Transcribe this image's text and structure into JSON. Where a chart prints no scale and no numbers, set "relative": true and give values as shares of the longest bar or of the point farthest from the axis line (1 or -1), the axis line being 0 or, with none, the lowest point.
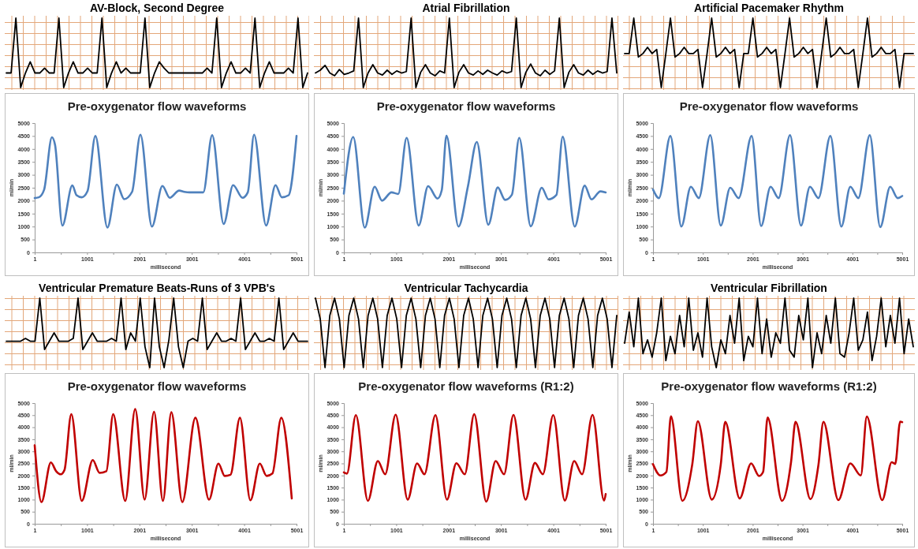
{
  "chart_data": [
    {
      "type": "line",
      "title": "AV-Block, Second Degree",
      "relative": true,
      "categories": [
        null,
        null,
        null,
        null,
        null,
        null,
        null,
        null,
        null,
        null,
        null,
        null,
        null,
        null,
        null,
        null,
        null,
        null,
        null,
        null,
        null,
        null,
        null,
        null,
        null,
        null,
        null,
        null,
        null,
        null,
        null,
        null,
        null,
        null,
        null,
        null,
        null,
        null,
        null,
        null,
        null,
        null,
        null,
        null,
        null,
        null,
        null,
        null,
        null,
        null,
        null,
        null,
        null,
        null,
        null,
        null,
        null,
        null,
        null,
        null,
        null,
        null,
        null,
        null
      ],
      "series": [
        {
          "color": "#000000",
          "values": [
            0.21,
            0.21,
            1,
            0,
            0.21,
            0.37,
            0.21,
            0.21,
            0.28,
            0.21,
            0.21,
            1,
            0,
            0.21,
            0.37,
            0.21,
            0.21,
            0.28,
            0.21,
            0.21,
            1,
            0,
            0.21,
            0.37,
            0.21,
            0.28,
            0.21,
            0.21,
            0.21,
            1,
            0,
            0.21,
            0.37,
            0.28,
            0.21,
            0.21,
            0.21,
            0.21,
            0.21,
            0.21,
            0.21,
            0.21,
            0.28,
            0.21,
            1,
            0,
            0.21,
            0.37,
            0.21,
            0.21,
            0.28,
            0.21,
            1,
            0,
            0.21,
            0.37,
            0.21,
            0.21,
            0.21,
            0.28,
            0.21,
            1,
            0,
            0.21
          ]
        }
      ]
    },
    {
      "type": "line",
      "title": "Atrial Fibrillation",
      "relative": true,
      "categories": [
        null,
        null,
        null,
        null,
        null,
        null,
        null,
        null,
        null,
        null,
        null,
        null,
        null,
        null,
        null,
        null,
        null,
        null,
        null,
        null,
        null,
        null,
        null,
        null,
        null,
        null,
        null,
        null,
        null,
        null,
        null,
        null,
        null,
        null,
        null,
        null,
        null,
        null,
        null,
        null,
        null,
        null,
        null,
        null,
        null,
        null,
        null,
        null,
        null,
        null,
        null,
        null,
        null,
        null,
        null,
        null,
        null,
        null,
        null,
        null,
        null,
        null,
        null,
        null
      ],
      "series": [
        {
          "color": "#000000",
          "values": [
            0.21,
            0.25,
            0.32,
            0.21,
            0.17,
            0.26,
            0.19,
            0.21,
            0.24,
            1,
            0,
            0.21,
            0.33,
            0.21,
            0.18,
            0.25,
            0.19,
            0.24,
            0.21,
            0.23,
            1,
            0,
            0.22,
            0.33,
            0.21,
            0.17,
            0.24,
            0.21,
            1,
            0,
            0.22,
            0.33,
            0.21,
            0.18,
            0.24,
            0.19,
            0.25,
            0.21,
            0.18,
            0.24,
            0.21,
            0.23,
            1,
            0,
            0.22,
            0.34,
            0.21,
            0.17,
            0.25,
            0.19,
            0.24,
            1,
            0,
            0.22,
            0.33,
            0.21,
            0.18,
            0.25,
            0.19,
            0.24,
            0.21,
            0.23,
            1,
            0.21
          ]
        }
      ]
    },
    {
      "type": "line",
      "title": "Artificial Pacemaker Rhythm",
      "relative": true,
      "categories": [
        null,
        null,
        null,
        null,
        null,
        null,
        null,
        null,
        null,
        null,
        null,
        null,
        null,
        null,
        null,
        null,
        null,
        null,
        null,
        null,
        null,
        null,
        null,
        null,
        null,
        null,
        null,
        null,
        null,
        null,
        null,
        null,
        null,
        null,
        null,
        null,
        null,
        null,
        null,
        null,
        null,
        null,
        null,
        null,
        null,
        null,
        null,
        null,
        null,
        null,
        null,
        null,
        null,
        null,
        null,
        null,
        null,
        null,
        null,
        null,
        null,
        null,
        null,
        null
      ],
      "series": [
        {
          "color": "#000000",
          "values": [
            0.49,
            0.49,
            1,
            0.44,
            0.49,
            0.58,
            0.49,
            0.55,
            0,
            0.49,
            1,
            0.44,
            0.49,
            0.58,
            0.49,
            0.49,
            0.55,
            0,
            0.49,
            1,
            0.44,
            0.49,
            0.58,
            0.49,
            0.55,
            0,
            0.49,
            0.49,
            1,
            0.44,
            0.49,
            0.58,
            0.49,
            0.55,
            0,
            0.49,
            1,
            0.44,
            0.49,
            0.58,
            0.49,
            0.55,
            0,
            0.49,
            1,
            0.44,
            0.49,
            0.58,
            0.49,
            0.49,
            0.55,
            0,
            0.49,
            1,
            0.44,
            0.49,
            0.58,
            0.49,
            0.49,
            0.55,
            0,
            0.49,
            0.49,
            0.49
          ]
        }
      ]
    },
    {
      "type": "line",
      "title": "Pre-oxygenator flow waveforms",
      "xlabel": "millisecond",
      "ylabel": "ml/min",
      "xlim": [
        1,
        5001
      ],
      "xticks": [
        1,
        {
          "value": 501,
          "label": null
        },
        1001,
        {
          "value": 1501,
          "label": null
        },
        2001,
        {
          "value": 2501,
          "label": null
        },
        3001,
        {
          "value": 3501,
          "label": null
        },
        4001,
        {
          "value": 4501,
          "label": null
        },
        5001
      ],
      "ylim": [
        0,
        5000
      ],
      "yticks": [
        0,
        500,
        1000,
        1500,
        2000,
        2500,
        3000,
        3500,
        4000,
        4500,
        5000
      ],
      "series": [
        {
          "color": "#4f81bd",
          "x": [
            1,
            80,
            180,
            330,
            390,
            530,
            720,
            800,
            900,
            1010,
            1160,
            1390,
            1570,
            1710,
            1860,
            2020,
            2240,
            2440,
            2580,
            2760,
            2860,
            2960,
            3220,
            3390,
            3610,
            3790,
            3970,
            4070,
            4190,
            4420,
            4600,
            4720,
            4850,
            5001
          ],
          "values": [
            2100,
            2130,
            2420,
            4450,
            4150,
            1040,
            2590,
            2210,
            2130,
            2370,
            4500,
            960,
            2620,
            2060,
            2340,
            4550,
            1000,
            2570,
            2110,
            2390,
            2340,
            2320,
            2320,
            4530,
            1100,
            2600,
            2110,
            2320,
            4550,
            1040,
            2600,
            2130,
            2210,
            4500
          ]
        }
      ]
    },
    {
      "type": "line",
      "title": "Pre-oxygenator flow waveforms",
      "xlabel": "millisecond",
      "ylabel": "ml/min",
      "xlim": [
        1,
        5001
      ],
      "xticks": [
        1,
        {
          "value": 501,
          "label": null
        },
        1001,
        {
          "value": 1501,
          "label": null
        },
        2001,
        {
          "value": 2501,
          "label": null
        },
        3001,
        {
          "value": 3501,
          "label": null
        },
        4001,
        {
          "value": 4501,
          "label": null
        },
        5001
      ],
      "ylim": [
        0,
        5000
      ],
      "yticks": [
        0,
        500,
        1000,
        1500,
        2000,
        2500,
        3000,
        3500,
        4000,
        4500,
        5000
      ],
      "series": [
        {
          "color": "#4f81bd",
          "x": [
            1,
            180,
            400,
            590,
            730,
            910,
            1040,
            1200,
            1430,
            1610,
            1790,
            1870,
            1960,
            2190,
            2370,
            2540,
            2760,
            2940,
            3080,
            3210,
            3350,
            3570,
            3780,
            3910,
            4060,
            4180,
            4410,
            4600,
            4730,
            4900,
            5001
          ],
          "values": [
            2270,
            4460,
            960,
            2540,
            2000,
            2320,
            2260,
            4430,
            1040,
            2560,
            2080,
            2400,
            4510,
            1000,
            2550,
            4270,
            1070,
            2510,
            2030,
            2230,
            4430,
            1010,
            2500,
            2050,
            2220,
            4470,
            1000,
            2580,
            2050,
            2360,
            2320
          ]
        }
      ]
    },
    {
      "type": "line",
      "title": "Pre-oxygenator flow waveforms",
      "xlabel": "millisecond",
      "ylabel": "ml/min",
      "xlim": [
        1,
        5001
      ],
      "xticks": [
        1,
        {
          "value": 501,
          "label": null
        },
        1001,
        {
          "value": 1501,
          "label": null
        },
        2001,
        {
          "value": 2501,
          "label": null
        },
        3001,
        {
          "value": 3501,
          "label": null
        },
        4001,
        {
          "value": 4501,
          "label": null
        },
        5001
      ],
      "ylim": [
        0,
        5000
      ],
      "yticks": [
        0,
        500,
        1000,
        1500,
        2000,
        2500,
        3000,
        3500,
        4000,
        4500,
        5000
      ],
      "series": [
        {
          "color": "#4f81bd",
          "x": [
            1,
            120,
            350,
            570,
            760,
            920,
            1150,
            1360,
            1550,
            1720,
            1980,
            2170,
            2360,
            2520,
            2750,
            2970,
            3150,
            3320,
            3560,
            3780,
            3960,
            4120,
            4350,
            4560,
            4760,
            4910,
            5001
          ],
          "values": [
            2430,
            2100,
            4500,
            1000,
            2540,
            2100,
            4530,
            1040,
            2500,
            2100,
            4500,
            1020,
            2540,
            2100,
            4530,
            1040,
            2540,
            2100,
            4500,
            1000,
            2540,
            2100,
            4530,
            980,
            2540,
            2100,
            2180
          ]
        }
      ]
    },
    {
      "type": "line",
      "title": "Ventricular Premature Beats-Runs of 3 VPB's",
      "relative": true,
      "categories": [
        null,
        null,
        null,
        null,
        null,
        null,
        null,
        null,
        null,
        null,
        null,
        null,
        null,
        null,
        null,
        null,
        null,
        null,
        null,
        null,
        null,
        null,
        null,
        null,
        null,
        null,
        null,
        null,
        null,
        null,
        null,
        null,
        null,
        null,
        null,
        null,
        null,
        null,
        null,
        null,
        null,
        null,
        null,
        null,
        null,
        null,
        null,
        null,
        null,
        null,
        null,
        null,
        null,
        null,
        null,
        null,
        null,
        null,
        null,
        null,
        null,
        null,
        null,
        null
      ],
      "series": [
        {
          "color": "#000000",
          "values": [
            0.38,
            0.38,
            0.38,
            0.38,
            0.42,
            0.38,
            0.38,
            1,
            0.26,
            0.38,
            0.5,
            0.38,
            0.38,
            0.38,
            0.42,
            1,
            0.26,
            0.38,
            0.5,
            0.38,
            0.38,
            0.38,
            0.42,
            0.38,
            1,
            0.26,
            0.5,
            0.38,
            1,
            0.3,
            0,
            1,
            0.3,
            0,
            0.4,
            1,
            0.3,
            0,
            0.38,
            0.42,
            0.38,
            1,
            0.26,
            0.38,
            0.5,
            0.38,
            0.38,
            0.42,
            0.38,
            1,
            0.26,
            0.38,
            0.5,
            0.38,
            0.38,
            0.42,
            0.38,
            1,
            0.26,
            0.38,
            0.5,
            0.38,
            0.38,
            0.38
          ]
        }
      ]
    },
    {
      "type": "line",
      "title": "Ventricular Tachycardia",
      "relative": true,
      "categories": [
        null,
        null,
        null,
        null,
        null,
        null,
        null,
        null,
        null,
        null,
        null,
        null,
        null,
        null,
        null,
        null,
        null,
        null,
        null,
        null,
        null,
        null,
        null,
        null,
        null,
        null,
        null,
        null,
        null,
        null,
        null,
        null,
        null,
        null,
        null,
        null,
        null,
        null,
        null,
        null,
        null,
        null,
        null,
        null,
        null,
        null,
        null,
        null,
        null,
        null,
        null,
        null,
        null,
        null,
        null,
        null,
        null,
        null,
        null,
        null,
        null,
        null,
        null,
        null
      ],
      "series": [
        {
          "color": "#000000",
          "values": [
            1,
            0.7,
            0,
            0.75,
            1,
            0.7,
            0,
            0.75,
            1,
            0.7,
            0,
            0.75,
            1,
            0.7,
            0,
            0.75,
            1,
            0.7,
            0,
            0.75,
            1,
            0.7,
            0,
            0.75,
            1,
            0.7,
            0,
            0.75,
            1,
            0.7,
            0,
            0.75,
            1,
            0.7,
            0,
            0.75,
            1,
            0.7,
            0,
            0.75,
            1,
            0.7,
            0,
            0.75,
            1,
            0.7,
            0,
            0.75,
            1,
            0.7,
            0,
            0.75,
            1,
            0.7,
            0,
            0.75,
            1,
            0.7,
            0,
            0.75,
            1,
            0.7,
            0,
            0.75
          ]
        }
      ]
    },
    {
      "type": "line",
      "title": "Ventricular Fibrillation",
      "relative": true,
      "categories": [
        null,
        null,
        null,
        null,
        null,
        null,
        null,
        null,
        null,
        null,
        null,
        null,
        null,
        null,
        null,
        null,
        null,
        null,
        null,
        null,
        null,
        null,
        null,
        null,
        null,
        null,
        null,
        null,
        null,
        null,
        null,
        null,
        null,
        null,
        null,
        null,
        null,
        null,
        null,
        null,
        null,
        null,
        null,
        null,
        null,
        null,
        null,
        null,
        null,
        null,
        null,
        null,
        null,
        null,
        null,
        null,
        null,
        null,
        null,
        null,
        null,
        null,
        null,
        null
      ],
      "series": [
        {
          "color": "#000000",
          "values": [
            0.35,
            0.8,
            0.3,
            1,
            0.2,
            0.4,
            0.15,
            0.5,
            1,
            0.1,
            0.45,
            0.2,
            0.75,
            0.3,
            1,
            0.25,
            0.5,
            0.15,
            1,
            0.3,
            0,
            0.4,
            0.2,
            0.75,
            0.35,
            1,
            0.1,
            0.45,
            0.3,
            1,
            0.2,
            0.7,
            0.15,
            0.5,
            0.35,
            1,
            0.25,
            0.15,
            0.75,
            0.4,
            1,
            0,
            0.5,
            0.2,
            0.75,
            0.35,
            1,
            0.2,
            0.15,
            0.5,
            1,
            0.25,
            0.4,
            0.8,
            0.1,
            0.45,
            1,
            0.3,
            0.75,
            0.35,
            1,
            0.2,
            0.7,
            0.3
          ]
        }
      ]
    },
    {
      "type": "line",
      "title": "Pre-oxygenator flow waveforms",
      "xlabel": "millisecond",
      "ylabel": "ml/min",
      "xlim": [
        1,
        5001
      ],
      "xticks": [
        1,
        {
          "value": 501,
          "label": null
        },
        1001,
        {
          "value": 1501,
          "label": null
        },
        2001,
        {
          "value": 2501,
          "label": null
        },
        3001,
        {
          "value": 3501,
          "label": null
        },
        4001,
        {
          "value": 4501,
          "label": null
        },
        5001
      ],
      "ylim": [
        0,
        5000
      ],
      "yticks": [
        0,
        500,
        1000,
        1500,
        2000,
        2500,
        3000,
        3500,
        4000,
        4500,
        5000
      ],
      "series": [
        {
          "color": "#c00000",
          "x": [
            1,
            130,
            310,
            410,
            500,
            570,
            700,
            900,
            1110,
            1240,
            1370,
            1500,
            1730,
            1920,
            2100,
            2280,
            2450,
            2610,
            2820,
            3070,
            3330,
            3510,
            3630,
            3740,
            3920,
            4120,
            4300,
            4430,
            4540,
            4710,
            4910
          ],
          "values": [
            3250,
            900,
            2540,
            2180,
            2050,
            2230,
            4540,
            950,
            2640,
            2110,
            2180,
            4540,
            950,
            4750,
            1000,
            4640,
            950,
            4620,
            900,
            4390,
            1000,
            2490,
            1980,
            2030,
            4390,
            970,
            2490,
            1980,
            2080,
            4390,
            1050
          ]
        }
      ]
    },
    {
      "type": "line",
      "title": "Pre-oxygenator flow waveforms (R1:2)",
      "xlabel": "millisecond",
      "ylabel": "ml/min",
      "xlim": [
        1,
        5001
      ],
      "xticks": [
        1,
        {
          "value": 501,
          "label": null
        },
        1001,
        {
          "value": 1501,
          "label": null
        },
        2001,
        {
          "value": 2501,
          "label": null
        },
        3001,
        {
          "value": 3501,
          "label": null
        },
        4001,
        {
          "value": 4501,
          "label": null
        },
        5001
      ],
      "ylim": [
        0,
        5000
      ],
      "yticks": [
        0,
        500,
        1000,
        1500,
        2000,
        2500,
        3000,
        3500,
        4000,
        4500,
        5000
      ],
      "series": [
        {
          "color": "#c00000",
          "x": [
            1,
            60,
            230,
            460,
            650,
            790,
            990,
            1220,
            1400,
            1540,
            1750,
            1970,
            2150,
            2310,
            2490,
            2720,
            2900,
            3060,
            3240,
            3470,
            3650,
            3800,
            4000,
            4220,
            4400,
            4550,
            4750,
            4970,
            5001
          ],
          "values": [
            2130,
            2080,
            4500,
            950,
            2600,
            2050,
            4520,
            1000,
            2500,
            2050,
            4500,
            1000,
            2510,
            2050,
            4540,
            920,
            2600,
            2050,
            4510,
            1000,
            2520,
            2050,
            4500,
            960,
            2600,
            2050,
            4510,
            960,
            1230
          ]
        }
      ]
    },
    {
      "type": "line",
      "title": "Pre-oxygenator flow waveforms (R1:2)",
      "xlabel": "millisecond",
      "ylabel": "ml/min",
      "xlim": [
        1,
        5001
      ],
      "xticks": [
        1,
        {
          "value": 501,
          "label": null
        },
        1001,
        {
          "value": 1501,
          "label": null
        },
        2001,
        {
          "value": 2501,
          "label": null
        },
        3001,
        {
          "value": 3501,
          "label": null
        },
        4001,
        {
          "value": 4501,
          "label": null
        },
        5001
      ],
      "ylim": [
        0,
        5000
      ],
      "yticks": [
        0,
        500,
        1000,
        1500,
        2000,
        2500,
        3000,
        3500,
        4000,
        4500,
        5000
      ],
      "series": [
        {
          "color": "#c00000",
          "x": [
            1,
            150,
            270,
            360,
            590,
            790,
            900,
            1180,
            1360,
            1450,
            1740,
            1970,
            2130,
            2210,
            2300,
            2590,
            2770,
            2860,
            3160,
            3320,
            3420,
            3720,
            3960,
            4170,
            4290,
            4600,
            4790,
            4860,
            4960,
            5001
          ],
          "values": [
            2470,
            2000,
            2150,
            4450,
            950,
            2480,
            4250,
            1000,
            2450,
            4220,
            1050,
            2500,
            1980,
            2150,
            4400,
            950,
            2550,
            4220,
            1020,
            2440,
            4220,
            980,
            2500,
            2000,
            4440,
            980,
            2550,
            2480,
            4230,
            4210
          ]
        }
      ]
    }
  ]
}
